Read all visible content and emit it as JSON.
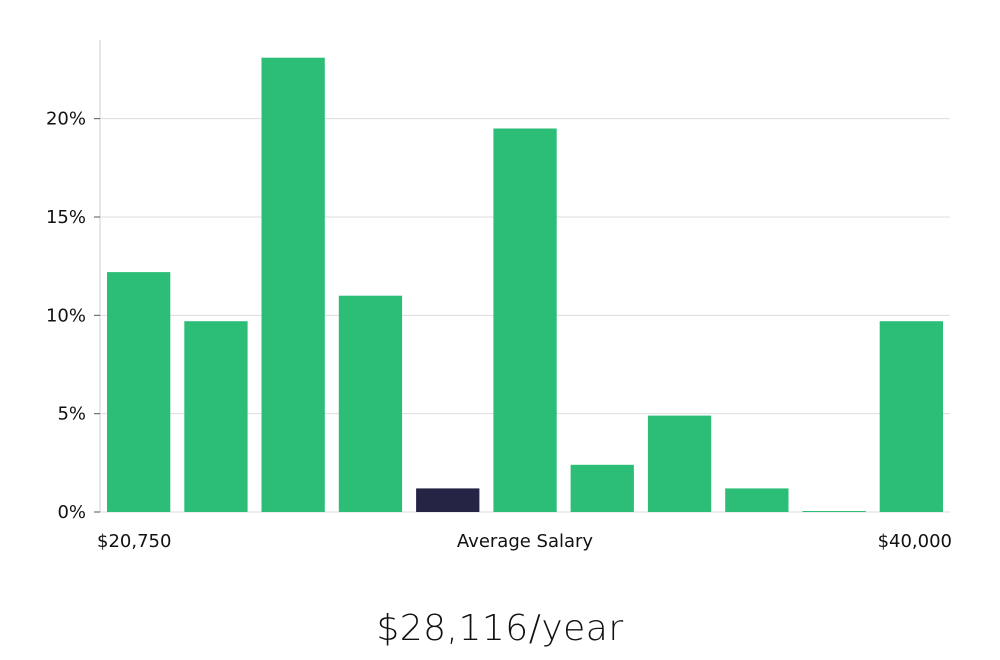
{
  "chart_data": {
    "type": "bar",
    "title": "",
    "xlabel": "",
    "ylabel": "",
    "x_range_labels": {
      "min": "$20,750",
      "middle": "Average Salary",
      "max": "$40,000"
    },
    "categories": [
      "1",
      "2",
      "3",
      "4",
      "5",
      "6",
      "7",
      "8",
      "9",
      "10",
      "11"
    ],
    "values": [
      12.2,
      9.7,
      23.1,
      11.0,
      1.2,
      19.5,
      2.4,
      4.9,
      1.2,
      0.05,
      9.7
    ],
    "highlight_index": 4,
    "ylim": [
      0,
      24
    ],
    "yticks": [
      0,
      5,
      10,
      15,
      20
    ],
    "ytick_labels": [
      "0%",
      "5%",
      "10%",
      "15%",
      "20%"
    ],
    "grid": true,
    "legend": "none",
    "colors": {
      "bar": "#2cbd77",
      "highlight": "#262445",
      "grid": "#dddddd",
      "axis": "#cccccc"
    }
  },
  "salary": {
    "text": "$28,116/year"
  }
}
